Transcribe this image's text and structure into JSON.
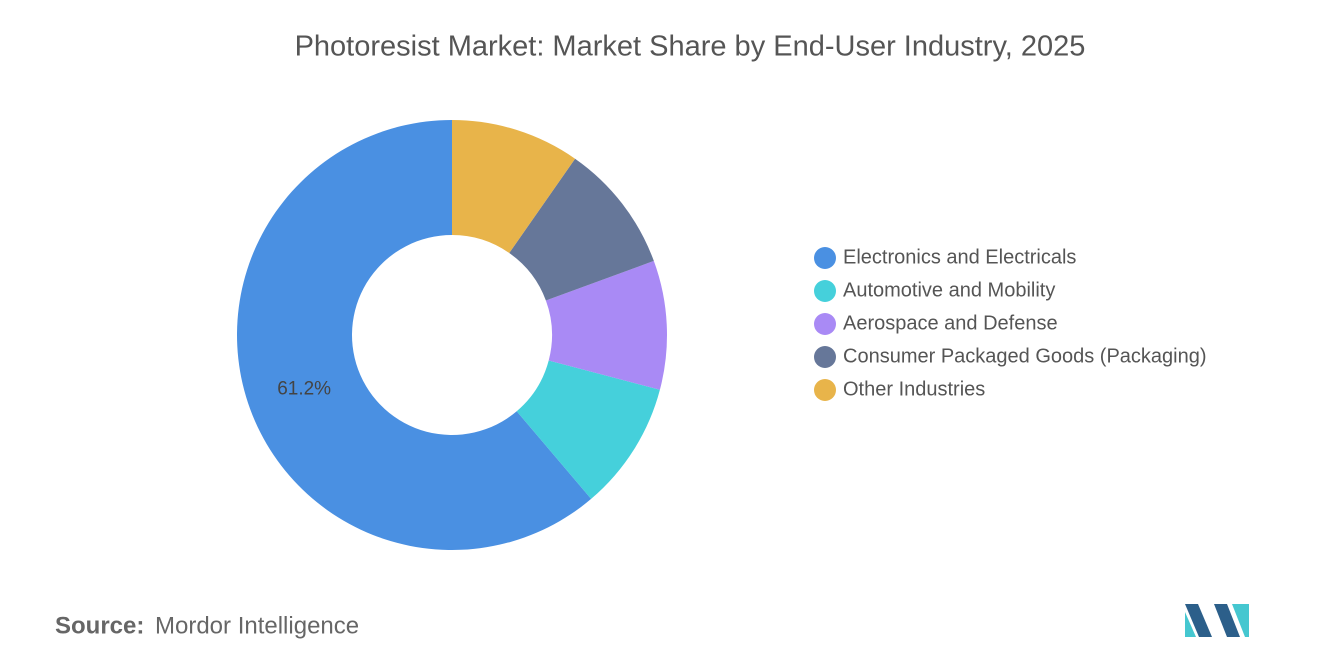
{
  "chart_data": {
    "type": "donut",
    "title": "Photoresist Market: Market Share by End-User Industry, 2025",
    "categories": [
      "Electronics and Electricals",
      "Automotive and Mobility",
      "Aerospace and Defense",
      "Consumer Packaged Goods (Packaging)",
      "Other Industries"
    ],
    "values": [
      61.2,
      9.7,
      9.7,
      9.7,
      9.7
    ],
    "value_labels": [
      "61.2%",
      null,
      null,
      null,
      null
    ],
    "colors": [
      "#4a90e2",
      "#45d0db",
      "#a98af5",
      "#667799",
      "#e8b44a"
    ],
    "legend": "right"
  },
  "footer": {
    "source_label": "Source:",
    "source": "Mordor Intelligence"
  }
}
